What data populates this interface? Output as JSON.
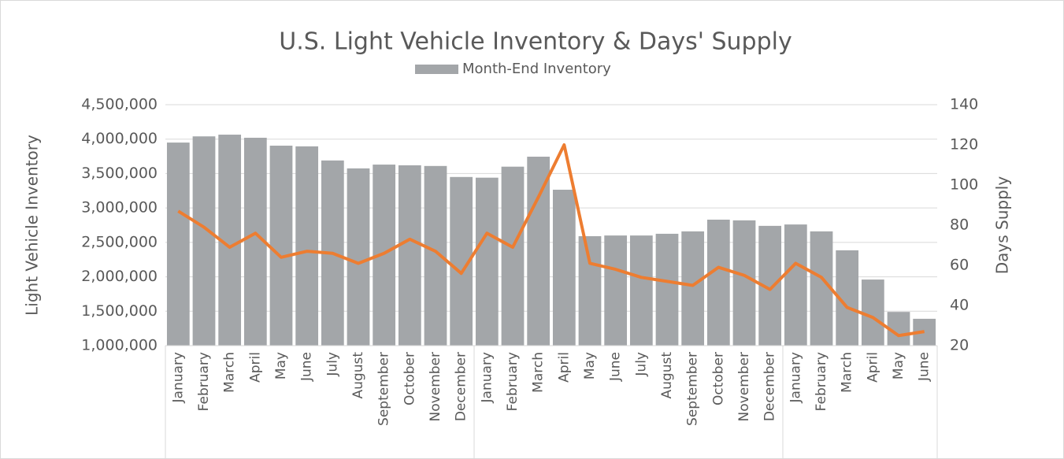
{
  "chart_data": {
    "type": "bar-line",
    "title": "U.S. Light Vehicle Inventory & Days' Supply",
    "y_label": "Light Vehicle Inventory",
    "y2_label": "Days Supply",
    "categories": [
      "January",
      "February",
      "March",
      "April",
      "May",
      "June",
      "July",
      "August",
      "September",
      "October",
      "November",
      "December",
      "January",
      "February",
      "March",
      "April",
      "May",
      "June",
      "July",
      "August",
      "September",
      "October",
      "November",
      "December",
      "January",
      "February",
      "March",
      "April",
      "May",
      "June"
    ],
    "series": [
      {
        "name": "Month-End Inventory",
        "type": "bar",
        "color": "#a3a6a9",
        "values": [
          3950000,
          4040000,
          4065000,
          4020000,
          3905000,
          3895000,
          3690000,
          3575000,
          3630000,
          3620000,
          3610000,
          3450000,
          3440000,
          3600000,
          3745000,
          3265000,
          2590000,
          2600000,
          2600000,
          2625000,
          2660000,
          2830000,
          2820000,
          2740000,
          2760000,
          2660000,
          2385000,
          1960000,
          1490000,
          1390000
        ]
      },
      {
        "type": "line",
        "axis": "y2",
        "color": "#ed7d31",
        "values": [
          87,
          79,
          69,
          76,
          64,
          67,
          66,
          61,
          66,
          73,
          67,
          56,
          76,
          69,
          94,
          120,
          61,
          58,
          54,
          52,
          50,
          59,
          55,
          48,
          61,
          54,
          39,
          34,
          25,
          27
        ]
      }
    ],
    "ylim": [
      1000000,
      4500000
    ],
    "yticks": [
      {
        "value": 1000000,
        "label": "1,000,000"
      },
      {
        "value": 1500000,
        "label": "1,500,000"
      },
      {
        "value": 2000000,
        "label": "2,000,000"
      },
      {
        "value": 2500000,
        "label": "2,500,000"
      },
      {
        "value": 3000000,
        "label": "3,000,000"
      },
      {
        "value": 3500000,
        "label": "3,500,000"
      },
      {
        "value": 4000000,
        "label": "4,000,000"
      },
      {
        "value": 4500000,
        "label": "4,500,000"
      }
    ],
    "y2lim": [
      20,
      140
    ],
    "y2ticks": [
      20,
      40,
      60,
      80,
      100,
      120,
      140
    ],
    "grid": true,
    "legend": "top"
  }
}
